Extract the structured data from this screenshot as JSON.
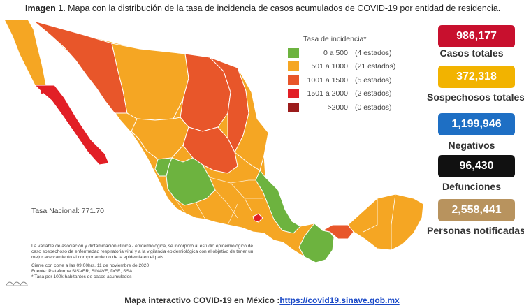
{
  "caption": {
    "bold": "Imagen 1.",
    "text": " Mapa con la distribución de la tasa de incidencia de casos acumulados de COVID-19 por entidad de residencia."
  },
  "legend": {
    "title": "Tasa de incidencia*",
    "items": [
      {
        "range": "0  a   500",
        "count": "(4 estados)",
        "color": "#6db33f"
      },
      {
        "range": "501  a  1000",
        "count": "(21 estados)",
        "color": "#f5a623"
      },
      {
        "range": "1001  a  1500",
        "count": "(5 estados)",
        "color": "#e8562a"
      },
      {
        "range": "1501  a  2000",
        "count": "(2 estados)",
        "color": "#e21f26"
      },
      {
        "range": ">2000",
        "count": "(0 estados)",
        "color": "#9b1c1c"
      }
    ]
  },
  "tasa_nacional": "Tasa Nacional: 771.70",
  "notes": [
    "La variable de asociación y dictaminación clínica - epidemiológica, se incorporó al estudio epidemiológico de caso sospechoso de enfermedad respiratoria viral y a la vigilancia epidemiológica con el objetivo de tener un mejor acercamiento al comportamiento de la epidemia en el país.",
    "Cierre con corte a las 09:00hrs, 11 de noviembre de 2020",
    "Fuente: Plataforma SISVER, SINAVE, DGE, SSA",
    "* Tasa por 100k habitantes de casos acumulados"
  ],
  "stats": [
    {
      "value": "986,177",
      "label": "Casos totales",
      "color": "#c8102e"
    },
    {
      "value": "372,318",
      "label": "Sospechosos totales",
      "color": "#f2b300"
    },
    {
      "value": "1,199,946",
      "label": "Negativos",
      "color": "#1e6fc4"
    },
    {
      "value": "96,430",
      "label": "Defunciones",
      "color": "#111111"
    },
    {
      "value": "2,558,441",
      "label": "Personas notificadas",
      "color": "#b8935e"
    }
  ],
  "footer": {
    "text": "Mapa interactivo COVID-19 en México :",
    "link": "https://covid19.sinave.gob.mx"
  }
}
